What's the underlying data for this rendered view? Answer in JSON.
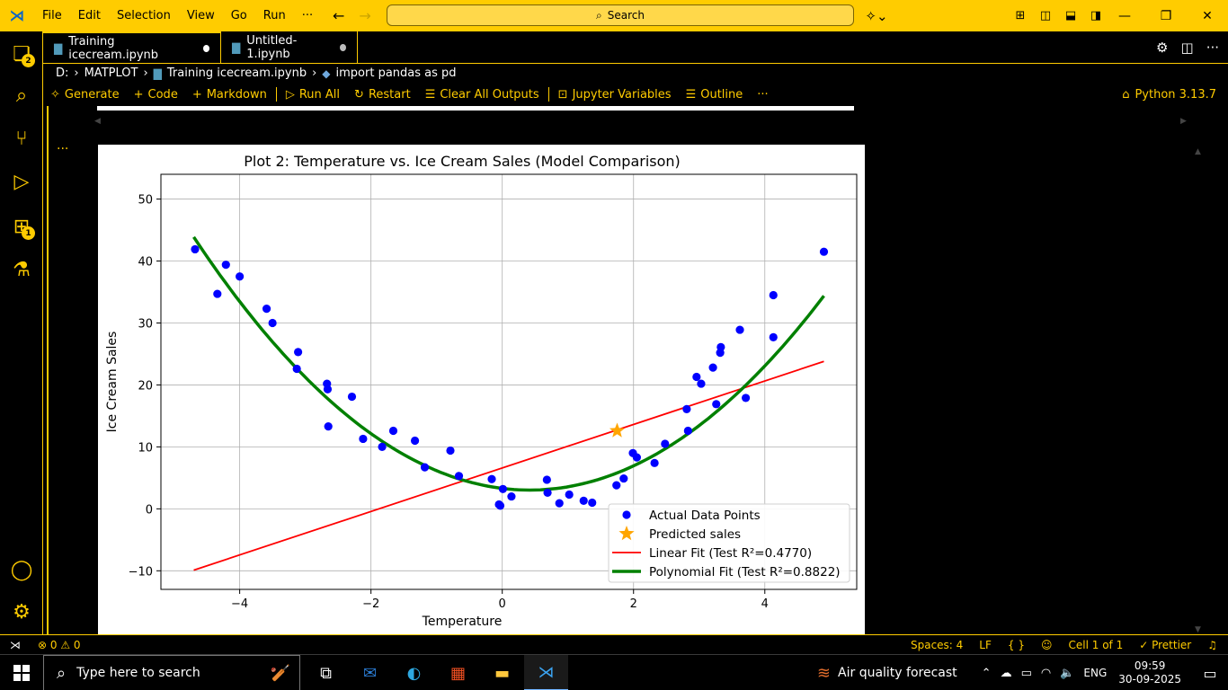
{
  "titlebar": {
    "menu": [
      "File",
      "Edit",
      "Selection",
      "View",
      "Go",
      "Run",
      "···"
    ],
    "search_label": "Search"
  },
  "activity_badges": {
    "explorer": "2",
    "extensions": "1"
  },
  "tabs": [
    {
      "label": "Training icecream.ipynb",
      "state": "active-modified"
    },
    {
      "label": "Untitled-1.ipynb",
      "state": "modified"
    }
  ],
  "breadcrumb": {
    "drive": "D:",
    "folder": "MATPLOT",
    "file": "Training icecream.ipynb",
    "symbol": "import pandas as pd"
  },
  "toolbar": {
    "generate": "Generate",
    "code": "Code",
    "markdown": "Markdown",
    "run_all": "Run All",
    "restart": "Restart",
    "clear_outputs": "Clear All Outputs",
    "variables": "Jupyter Variables",
    "outline": "Outline",
    "more": "···",
    "kernel": "Python 3.13.7"
  },
  "cell": {
    "more": "···"
  },
  "chart_data": {
    "type": "scatter",
    "title": "Plot 2: Temperature vs. Ice Cream Sales (Model Comparison)",
    "xlabel": "Temperature",
    "ylabel": "Ice Cream Sales",
    "xlim": [
      -5.2,
      5.4
    ],
    "ylim": [
      -13,
      54
    ],
    "xticks": [
      -4,
      -2,
      0,
      2,
      4
    ],
    "yticks": [
      -10,
      0,
      10,
      20,
      30,
      40,
      50
    ],
    "xtick_labels": [
      "−4",
      "−2",
      "0",
      "2",
      "4"
    ],
    "ytick_labels": [
      "−10",
      "0",
      "10",
      "20",
      "30",
      "40",
      "50"
    ],
    "grid": true,
    "legend_placement": "lower-right",
    "points": {
      "name": "Actual Data Points",
      "color": "#0000ff",
      "x": [
        -4.68,
        -4.34,
        -4.21,
        -4.0,
        -3.59,
        -3.5,
        -3.11,
        -3.13,
        -2.67,
        -2.66,
        -2.65,
        -2.29,
        -2.12,
        -1.83,
        -1.66,
        -1.33,
        -1.18,
        -0.79,
        -0.66,
        -0.16,
        -0.05,
        -0.03,
        0.01,
        0.14,
        0.68,
        0.69,
        0.87,
        1.02,
        1.24,
        1.37,
        1.74,
        1.85,
        1.99,
        2.05,
        2.32,
        2.48,
        2.81,
        2.83,
        2.96,
        3.03,
        3.21,
        3.26,
        3.32,
        3.33,
        3.62,
        3.71,
        4.13,
        4.13,
        4.9
      ],
      "y": [
        41.9,
        34.7,
        39.4,
        37.5,
        32.3,
        30.0,
        25.3,
        22.6,
        20.2,
        19.3,
        13.3,
        18.1,
        11.3,
        10.0,
        12.6,
        11.0,
        6.7,
        9.4,
        5.3,
        4.8,
        0.7,
        0.5,
        3.2,
        2.0,
        4.7,
        2.6,
        0.9,
        2.3,
        1.3,
        1.0,
        3.8,
        4.9,
        9.0,
        8.3,
        7.4,
        10.5,
        16.1,
        12.6,
        21.3,
        20.2,
        22.8,
        16.9,
        25.2,
        26.1,
        28.9,
        17.9,
        34.5,
        27.7,
        41.5
      ]
    },
    "predicted": {
      "name": "Predicted sales",
      "x": 1.75,
      "y": 12.6,
      "color": "#ffa500"
    },
    "linear": {
      "name": "Linear Fit (Test R²=0.4770)",
      "color": "#ff0000",
      "x": [
        -4.7,
        4.9
      ],
      "y": [
        -9.9,
        23.8
      ]
    },
    "poly": {
      "name": "Polynomial Fit (Test R²=0.8822)",
      "color": "#008000",
      "a": 1.56,
      "b": -1.3,
      "c": 3.3,
      "x_range": [
        -4.7,
        4.9
      ]
    }
  },
  "statusbar": {
    "problems": "⊗ 0 ⚠ 0",
    "spaces": "Spaces: 4",
    "eol": "LF",
    "braces": "{ }",
    "cell": "Cell 1 of 1",
    "prettier": "✓ Prettier"
  },
  "taskbar": {
    "search_placeholder": "Type here to search",
    "weather": "Air quality forecast",
    "lang": "ENG",
    "time": "09:59",
    "date": "30-09-2025"
  }
}
